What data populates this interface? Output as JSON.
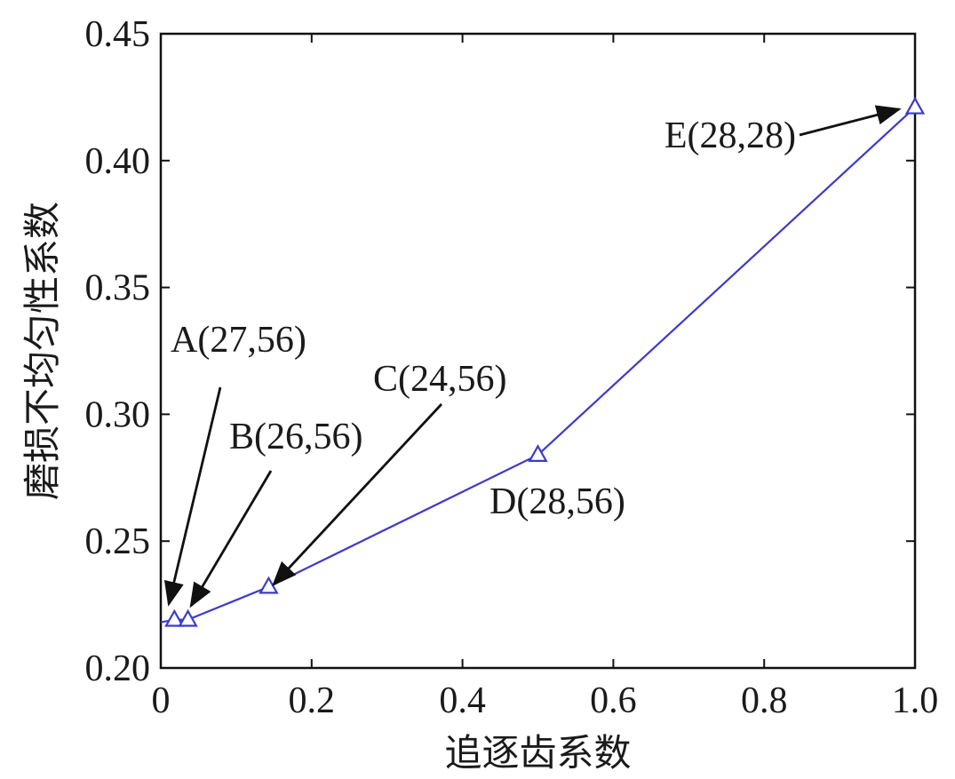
{
  "chart_data": {
    "type": "line",
    "title": "",
    "xlabel": "追逐齿系数",
    "ylabel": "磨损不均匀性系数",
    "xlim": [
      0,
      1.0
    ],
    "ylim": [
      0.2,
      0.45
    ],
    "x_ticks": [
      {
        "value": 0,
        "label": "0"
      },
      {
        "value": 0.2,
        "label": "0.2"
      },
      {
        "value": 0.4,
        "label": "0.4"
      },
      {
        "value": 0.6,
        "label": "0.6"
      },
      {
        "value": 0.8,
        "label": "0.8"
      },
      {
        "value": 1.0,
        "label": "1.0"
      }
    ],
    "y_ticks": [
      {
        "value": 0.2,
        "label": "0.20"
      },
      {
        "value": 0.25,
        "label": "0.25"
      },
      {
        "value": 0.3,
        "label": "0.30"
      },
      {
        "value": 0.35,
        "label": "0.35"
      },
      {
        "value": 0.4,
        "label": "0.40"
      },
      {
        "value": 0.45,
        "label": "0.45"
      }
    ],
    "grid": false,
    "legend": "none",
    "series": [
      {
        "color": "#3b3bcc",
        "marker": "triangle-open",
        "x": [
          0,
          0.018,
          0.036,
          0.143,
          0.5,
          1.0
        ],
        "y": [
          0.218,
          0.219,
          0.219,
          0.232,
          0.284,
          0.421
        ],
        "marker_points": [
          1,
          2,
          3,
          4,
          5
        ]
      }
    ],
    "annotations": [
      {
        "text": "A(27,56)",
        "point": [
          0.018,
          0.219
        ],
        "arrow": true
      },
      {
        "text": "B(26,56)",
        "point": [
          0.036,
          0.219
        ],
        "arrow": true
      },
      {
        "text": "C(24,56)",
        "point": [
          0.143,
          0.232
        ],
        "arrow": true
      },
      {
        "text": "D(28,56)",
        "point": [
          0.5,
          0.284
        ],
        "arrow": false
      },
      {
        "text": "E(28,28)",
        "point": [
          1.0,
          0.421
        ],
        "arrow": true
      }
    ]
  }
}
